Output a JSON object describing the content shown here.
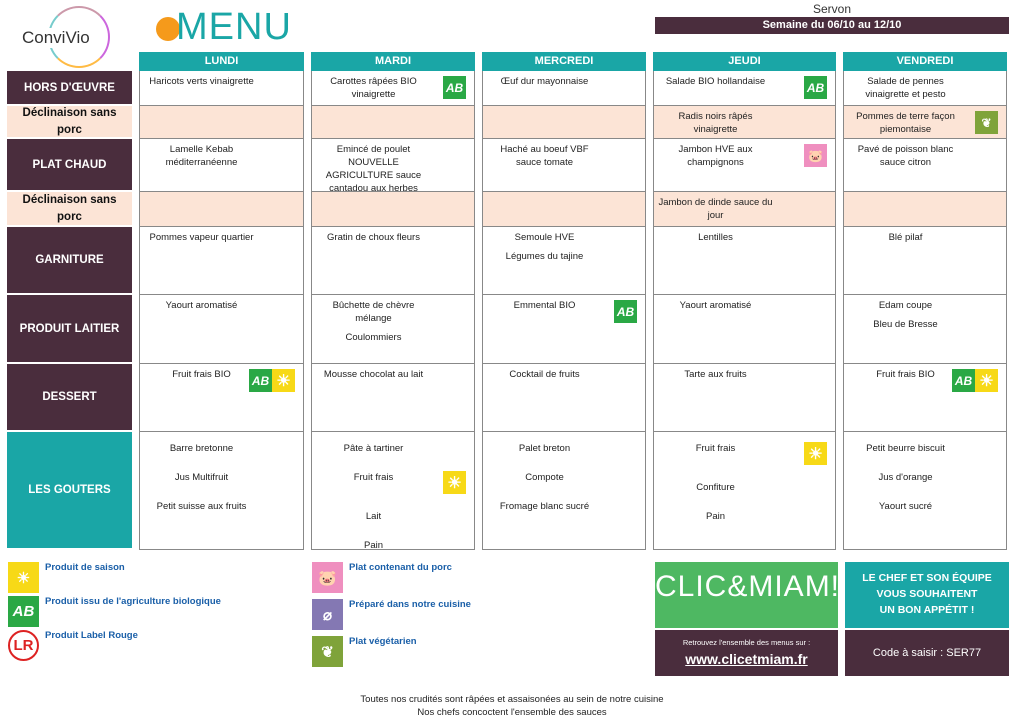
{
  "header": {
    "logo": "ConviVio",
    "title": "MENU",
    "city": "Servon",
    "week": "Semaine du 06/10 au 12/10"
  },
  "days": [
    "LUNDI",
    "MARDI",
    "MERCREDI",
    "JEUDI",
    "VENDREDI"
  ],
  "rows": [
    {
      "label": "HORS D'ŒUVRE",
      "style": "dark",
      "cells": [
        {
          "items": [
            {
              "text": "Haricots verts vinaigrette"
            }
          ]
        },
        {
          "items": [
            {
              "text": "Carottes râpées BIO vinaigrette"
            }
          ],
          "icons": [
            "ab"
          ]
        },
        {
          "items": [
            {
              "text": "Œuf dur mayonnaise"
            }
          ]
        },
        {
          "items": [
            {
              "text": "Salade BIO hollandaise"
            }
          ],
          "icons": [
            "ab"
          ]
        },
        {
          "items": [
            {
              "text": "Salade de pennes vinaigrette et pesto"
            }
          ]
        }
      ]
    },
    {
      "label": "Déclinaison sans porc",
      "style": "peach",
      "cells": [
        {
          "items": []
        },
        {
          "items": []
        },
        {
          "items": []
        },
        {
          "items": [
            {
              "text": "Radis noirs râpés vinaigrette"
            }
          ]
        },
        {
          "items": [
            {
              "text": "Pommes de terre façon piemontaise"
            }
          ],
          "icons": [
            "veg"
          ]
        }
      ]
    },
    {
      "label": "PLAT CHAUD",
      "style": "dark",
      "cells": [
        {
          "items": [
            {
              "text": "Lamelle Kebab méditerranéenne"
            }
          ]
        },
        {
          "items": [
            {
              "text": "Emincé de poulet NOUVELLE AGRICULTURE sauce cantadou aux herbes"
            }
          ]
        },
        {
          "items": [
            {
              "text": "Haché au boeuf VBF sauce tomate"
            }
          ]
        },
        {
          "items": [
            {
              "text": "Jambon HVE aux champignons"
            }
          ],
          "icons": [
            "pig"
          ]
        },
        {
          "items": [
            {
              "text": "Pavé de poisson blanc sauce citron"
            }
          ]
        }
      ]
    },
    {
      "label": "Déclinaison sans porc",
      "style": "peach",
      "cells": [
        {
          "items": []
        },
        {
          "items": []
        },
        {
          "items": []
        },
        {
          "items": [
            {
              "text": "Jambon de dinde sauce du jour"
            }
          ]
        },
        {
          "items": []
        }
      ]
    },
    {
      "label": "GARNITURE",
      "style": "dark",
      "cells": [
        {
          "items": [
            {
              "text": "Pommes vapeur quartier"
            }
          ]
        },
        {
          "items": [
            {
              "text": "Gratin de choux fleurs"
            }
          ]
        },
        {
          "items": [
            {
              "text": "Semoule HVE"
            },
            {
              "text": "Légumes du tajine"
            }
          ]
        },
        {
          "items": [
            {
              "text": "Lentilles"
            }
          ]
        },
        {
          "items": [
            {
              "text": "Blé pilaf"
            }
          ]
        }
      ]
    },
    {
      "label": "PRODUIT LAITIER",
      "style": "dark",
      "cells": [
        {
          "items": [
            {
              "text": "Yaourt aromatisé"
            }
          ]
        },
        {
          "items": [
            {
              "text": "Bûchette de chèvre mélange"
            },
            {
              "text": "Coulommiers"
            }
          ]
        },
        {
          "items": [
            {
              "text": "Emmental BIO"
            }
          ],
          "icons": [
            "ab"
          ]
        },
        {
          "items": [
            {
              "text": "Yaourt aromatisé"
            }
          ]
        },
        {
          "items": [
            {
              "text": "Edam coupe"
            },
            {
              "text": "Bleu de Bresse"
            }
          ]
        }
      ]
    },
    {
      "label": "DESSERT",
      "style": "dark",
      "cells": [
        {
          "items": [
            {
              "text": "Fruit frais BIO"
            }
          ],
          "icons": [
            "ab",
            "sun"
          ]
        },
        {
          "items": [
            {
              "text": "Mousse chocolat au lait"
            }
          ]
        },
        {
          "items": [
            {
              "text": "Cocktail de fruits"
            }
          ]
        },
        {
          "items": [
            {
              "text": "Tarte aux fruits"
            }
          ]
        },
        {
          "items": [
            {
              "text": "Fruit frais BIO"
            }
          ],
          "icons": [
            "ab",
            "sun"
          ]
        }
      ]
    },
    {
      "label": "LES GOUTERS",
      "style": "teal",
      "snack": true,
      "cells": [
        {
          "items": [
            {
              "text": "Barre bretonne"
            },
            {
              "text": "Jus Multifruit"
            },
            {
              "text": "Petit suisse aux fruits"
            }
          ]
        },
        {
          "items": [
            {
              "text": "Pâte à tartiner"
            },
            {
              "text": "Fruit frais",
              "icons": [
                "sun"
              ]
            },
            {
              "text": "Lait"
            },
            {
              "text": "Pain"
            }
          ]
        },
        {
          "items": [
            {
              "text": "Palet breton"
            },
            {
              "text": "Compote"
            },
            {
              "text": "Fromage blanc sucré"
            }
          ]
        },
        {
          "items": [
            {
              "text": "Fruit frais",
              "icons": [
                "sun"
              ]
            },
            {
              "text": "Confiture"
            },
            {
              "text": "Pain"
            }
          ]
        },
        {
          "items": [
            {
              "text": "Petit beurre biscuit"
            },
            {
              "text": "Jus d'orange"
            },
            {
              "text": "Yaourt sucré"
            }
          ]
        }
      ]
    }
  ],
  "icon_glyphs": {
    "ab": "AB",
    "sun": "☀",
    "pig": "🐷",
    "veg": "❦",
    "whisk": "⌀",
    "rouge": "LR"
  },
  "legend": [
    {
      "icon": "sun",
      "label": "Produit de saison"
    },
    {
      "icon": "ab",
      "label": "Produit issu de l'agriculture biologique"
    },
    {
      "icon": "rouge",
      "label": "Produit Label Rouge"
    },
    {
      "icon": "pig",
      "label": "Plat contenant du porc"
    },
    {
      "icon": "whisk",
      "label": "Préparé dans notre cuisine"
    },
    {
      "icon": "veg",
      "label": "Plat végétarien"
    }
  ],
  "promo": {
    "brand": "CLIC&MIAM!",
    "find_text": "Retrouvez l'ensemble des menus sur :",
    "url": "www.clicetmiam.fr",
    "chef_line1": "LE CHEF ET SON ÉQUIPE",
    "chef_line2": "VOUS SOUHAITENT",
    "chef_line3": "UN BON APPÉTIT !",
    "code": "Code à saisir : SER77"
  },
  "footer": {
    "line1": "Toutes nos crudités sont râpées et assaisonées au sein de notre cuisine",
    "line2": "Nos chefs concoctent l'ensemble des sauces"
  },
  "colors": {
    "plum": "#4a2d3d",
    "teal": "#1aa6a6",
    "peach": "#fce4d6",
    "bio_green": "#2aa845",
    "season_yellow": "#f7d917"
  }
}
